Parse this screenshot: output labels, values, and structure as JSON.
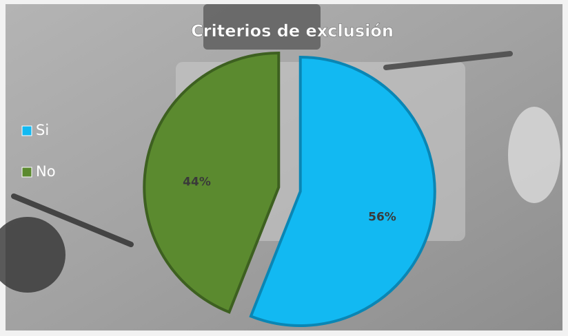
{
  "chart_data": {
    "type": "pie",
    "title": "Criterios de exclusión",
    "categories": [
      "Si",
      "No"
    ],
    "values": [
      56,
      44
    ],
    "value_labels": [
      "56%",
      "44%"
    ],
    "colors": [
      "#12b9f2",
      "#5b8a2f"
    ],
    "legend": "left"
  }
}
